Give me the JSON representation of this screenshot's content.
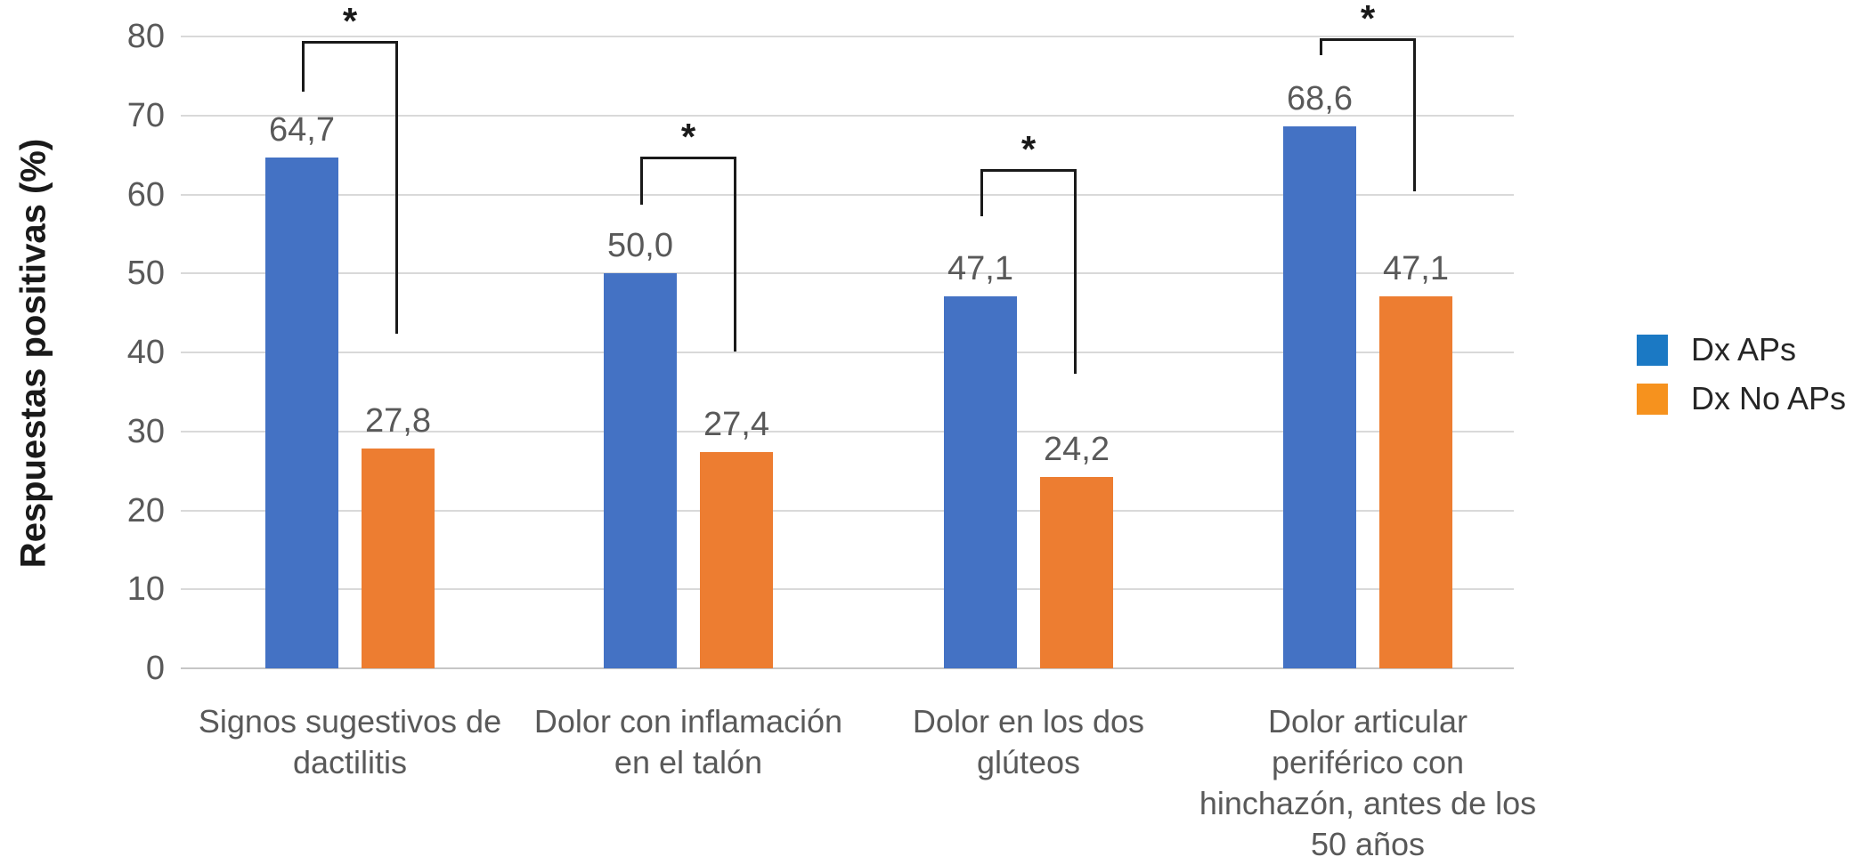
{
  "chart_data": {
    "type": "bar",
    "title": "",
    "xlabel": "",
    "ylabel": "Respuestas positivas (%)",
    "ylim": [
      0,
      80
    ],
    "ytick_step": 10,
    "grid": true,
    "legend_position": "right",
    "categories": [
      "Signos sugestivos de dactilitis",
      "Dolor con inflamación en el talón",
      "Dolor en los dos glúteos",
      "Dolor articular periférico con hinchazón, antes de los 50 años"
    ],
    "category_lines": [
      [
        "Signos sugestivos de",
        "dactilitis"
      ],
      [
        "Dolor con inflamación",
        "en el talón"
      ],
      [
        "Dolor en los dos",
        "glúteos"
      ],
      [
        "Dolor articular",
        "periférico con",
        "hinchazón, antes de los",
        "50 años"
      ]
    ],
    "series": [
      {
        "name": "Dx APs",
        "color": "#4472C4",
        "values": [
          64.7,
          50.0,
          47.1,
          68.6
        ],
        "labels": [
          "64,7",
          "50,0",
          "47,1",
          "68,6"
        ]
      },
      {
        "name": "Dx No APs",
        "color": "#ED7D31",
        "values": [
          27.8,
          27.4,
          24.2,
          47.1
        ],
        "labels": [
          "27,8",
          "27,4",
          "24,2",
          "47,1"
        ]
      }
    ],
    "significance_brackets": [
      {
        "group": 0,
        "label": "*",
        "top": 79.4,
        "left_drop_to": 73.0,
        "right_drop_to": 42.4
      },
      {
        "group": 1,
        "label": "*",
        "top": 64.8,
        "left_drop_to": 58.7,
        "right_drop_to": 40.1
      },
      {
        "group": 2,
        "label": "*",
        "top": 63.2,
        "left_drop_to": 57.2,
        "right_drop_to": 37.3
      },
      {
        "group": 3,
        "label": "*",
        "top": 79.8,
        "left_drop_to": 77.6,
        "right_drop_to": 60.4
      }
    ],
    "legend": {
      "items": [
        {
          "label": "Dx APs",
          "color": "#1B79C4"
        },
        {
          "label": "Dx No APs",
          "color": "#F6921E"
        }
      ]
    }
  },
  "colors": {
    "background": "#ffffff",
    "bar_blue": "#4472C4",
    "bar_orange": "#ED7D31",
    "legend_blue": "#1B79C4",
    "legend_orange": "#F6921E",
    "axis_text": "#595959",
    "gridline": "#d9d9d9",
    "bracket": "#1a1a1a"
  }
}
